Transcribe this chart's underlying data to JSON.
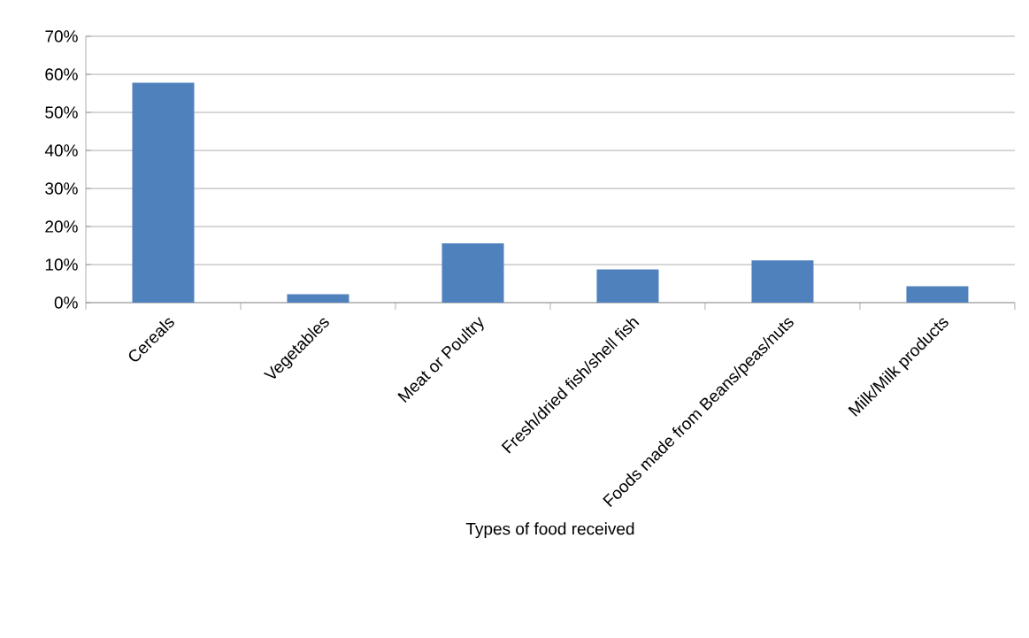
{
  "chart_data": {
    "type": "bar",
    "xlabel": "Types of food received",
    "categories": [
      "Cereals",
      "Vegetables",
      "Meat or Poultry",
      "Fresh/dried fish/shell fish",
      "Foods made from Beans/peas/nuts",
      "Milk/Milk products"
    ],
    "values": [
      57.8,
      2.2,
      15.6,
      8.7,
      11.1,
      4.3
    ],
    "color": "#4f81bd",
    "ylim": [
      0,
      70
    ],
    "yticks": [
      {
        "value": 0,
        "label": "0%"
      },
      {
        "value": 10,
        "label": "10%"
      },
      {
        "value": 20,
        "label": "20%"
      },
      {
        "value": 30,
        "label": "30%"
      },
      {
        "value": 40,
        "label": "40%"
      },
      {
        "value": 50,
        "label": "50%"
      },
      {
        "value": 60,
        "label": "60%"
      },
      {
        "value": 70,
        "label": "70%"
      }
    ],
    "grid": "y"
  }
}
